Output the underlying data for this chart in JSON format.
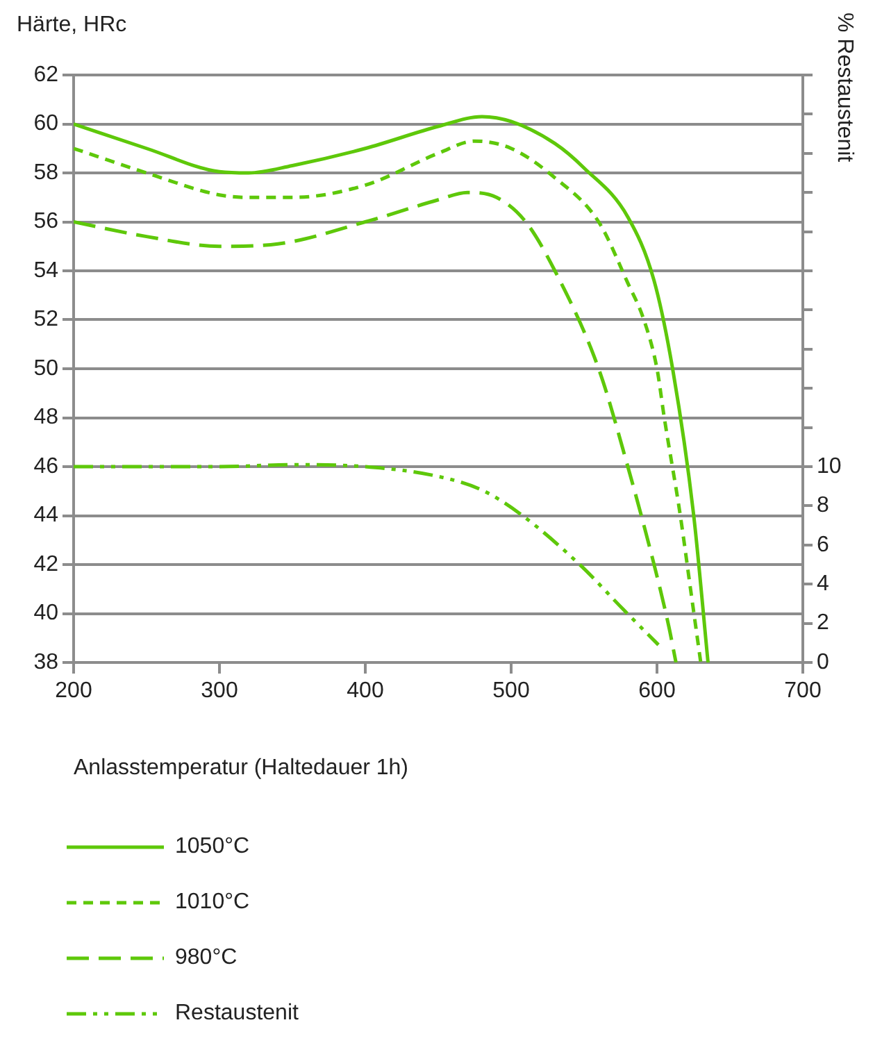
{
  "chart_data": {
    "type": "line",
    "ylabel": "Härte, HRc",
    "y2label": "% Restaustenit",
    "xlabel": "Anlasstemperatur (Haltedauer 1h)",
    "xlim": [
      200,
      700
    ],
    "xticks": [
      200,
      300,
      400,
      500,
      600,
      700
    ],
    "ylim": [
      38,
      62
    ],
    "yticks": [
      38,
      40,
      42,
      44,
      46,
      48,
      50,
      52,
      54,
      56,
      58,
      60,
      62
    ],
    "y2lim": [
      0,
      30
    ],
    "y2ticks": [
      0,
      2,
      4,
      6,
      8,
      10,
      {
        "value": 12,
        "label": null
      },
      {
        "value": 14,
        "label": null
      },
      {
        "value": 16,
        "label": null
      },
      {
        "value": 18,
        "label": null
      },
      {
        "value": 20,
        "label": null
      },
      {
        "value": 22,
        "label": null
      },
      {
        "value": 24,
        "label": null
      },
      {
        "value": 26,
        "label": null
      },
      {
        "value": 28,
        "label": null
      },
      {
        "value": 30,
        "label": null
      }
    ],
    "grid": "y",
    "legend": "bottom",
    "marker": "none",
    "series": [
      {
        "name": "1050°C",
        "color": "#5ec80a",
        "line_style": "solid",
        "x": [
          200,
          250,
          300,
          320,
          350,
          400,
          450,
          480,
          500,
          530,
          550,
          580,
          598,
          611,
          625,
          635
        ],
        "values": [
          60,
          59,
          58.05,
          58,
          58.3,
          59,
          59.9,
          60.3,
          60.1,
          59.2,
          58.2,
          56.2,
          53.6,
          49.9,
          44.1,
          38
        ]
      },
      {
        "name": "1010°C",
        "color": "#5ec80a",
        "line_style": "dashed",
        "x": [
          200,
          250,
          300,
          320,
          350,
          400,
          450,
          475,
          500,
          530,
          560,
          580,
          591,
          600,
          605,
          616,
          623,
          630
        ],
        "values": [
          59,
          58,
          57.1,
          57,
          57,
          57.5,
          58.8,
          59.3,
          59,
          57.8,
          56,
          53.5,
          52,
          50,
          48,
          44,
          41,
          38
        ]
      },
      {
        "name": "980°C",
        "color": "#5ec80a",
        "line_style": "dashed",
        "x": [
          200,
          250,
          300,
          340,
          400,
          450,
          470,
          490,
          510,
          530,
          560,
          580,
          598,
          608,
          613
        ],
        "values": [
          56,
          55.4,
          55,
          55.1,
          56,
          56.9,
          57.2,
          57,
          56,
          54,
          50,
          46,
          42,
          39.5,
          38
        ]
      },
      {
        "name": "Restaustenit",
        "color": "#5ec80a",
        "line_style": "dashed",
        "axis": "y2",
        "x": [
          200,
          300,
          350,
          400,
          450,
          480,
          506,
          547,
          577,
          601
        ],
        "values": [
          10,
          10,
          10.1,
          10,
          9.5,
          8.8,
          7.6,
          5,
          2.7,
          0.9
        ]
      }
    ]
  }
}
